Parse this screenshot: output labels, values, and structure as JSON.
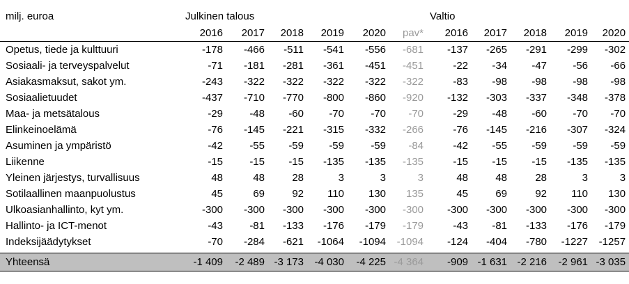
{
  "table": {
    "unit_label": "milj. euroa",
    "group_julkinen": "Julkinen talous",
    "group_valtio": "Valtio",
    "years_julkinen": [
      "2016",
      "2017",
      "2018",
      "2019",
      "2020",
      "pav*"
    ],
    "years_valtio": [
      "2016",
      "2017",
      "2018",
      "2019",
      "2020"
    ],
    "rows": [
      {
        "label": "Opetus, tiede ja kulttuuri",
        "julkinen": [
          "-178",
          "-466",
          "-511",
          "-541",
          "-556",
          "-681"
        ],
        "valtio": [
          "-137",
          "-265",
          "-291",
          "-299",
          "-302"
        ]
      },
      {
        "label": "Sosiaali- ja terveyspalvelut",
        "julkinen": [
          "-71",
          "-181",
          "-281",
          "-361",
          "-451",
          "-451"
        ],
        "valtio": [
          "-22",
          "-34",
          "-47",
          "-56",
          "-66"
        ]
      },
      {
        "label": "Asiakasmaksut, sakot ym.",
        "julkinen": [
          "-243",
          "-322",
          "-322",
          "-322",
          "-322",
          "-322"
        ],
        "valtio": [
          "-83",
          "-98",
          "-98",
          "-98",
          "-98"
        ]
      },
      {
        "label": "Sosiaalietuudet",
        "julkinen": [
          "-437",
          "-710",
          "-770",
          "-800",
          "-860",
          "-920"
        ],
        "valtio": [
          "-132",
          "-303",
          "-337",
          "-348",
          "-378"
        ]
      },
      {
        "label": "Maa- ja metsätalous",
        "julkinen": [
          "-29",
          "-48",
          "-60",
          "-70",
          "-70",
          "-70"
        ],
        "valtio": [
          "-29",
          "-48",
          "-60",
          "-70",
          "-70"
        ]
      },
      {
        "label": "Elinkeinoelämä",
        "julkinen": [
          "-76",
          "-145",
          "-221",
          "-315",
          "-332",
          "-266"
        ],
        "valtio": [
          "-76",
          "-145",
          "-216",
          "-307",
          "-324"
        ]
      },
      {
        "label": "Asuminen ja ympäristö",
        "julkinen": [
          "-42",
          "-55",
          "-59",
          "-59",
          "-59",
          "-84"
        ],
        "valtio": [
          "-42",
          "-55",
          "-59",
          "-59",
          "-59"
        ]
      },
      {
        "label": "Liikenne",
        "julkinen": [
          "-15",
          "-15",
          "-15",
          "-135",
          "-135",
          "-135"
        ],
        "valtio": [
          "-15",
          "-15",
          "-15",
          "-135",
          "-135"
        ]
      },
      {
        "label": "Yleinen järjestys, turvallisuus",
        "julkinen": [
          "48",
          "48",
          "28",
          "3",
          "3",
          "3"
        ],
        "valtio": [
          "48",
          "48",
          "28",
          "3",
          "3"
        ]
      },
      {
        "label": "Sotilaallinen maanpuolustus",
        "julkinen": [
          "45",
          "69",
          "92",
          "110",
          "130",
          "135"
        ],
        "valtio": [
          "45",
          "69",
          "92",
          "110",
          "130"
        ]
      },
      {
        "label": "Ulkoasianhallinto, kyt ym.",
        "julkinen": [
          "-300",
          "-300",
          "-300",
          "-300",
          "-300",
          "-300"
        ],
        "valtio": [
          "-300",
          "-300",
          "-300",
          "-300",
          "-300"
        ]
      },
      {
        "label": "Hallinto- ja ICT-menot",
        "julkinen": [
          "-43",
          "-81",
          "-133",
          "-176",
          "-179",
          "-179"
        ],
        "valtio": [
          "-43",
          "-81",
          "-133",
          "-176",
          "-179"
        ]
      },
      {
        "label": "Indeksijäädytykset",
        "julkinen": [
          "-70",
          "-284",
          "-621",
          "-1064",
          "-1094",
          "-1094"
        ],
        "valtio": [
          "-124",
          "-404",
          "-780",
          "-1227",
          "-1257"
        ]
      }
    ],
    "total": {
      "label": "Yhteensä",
      "julkinen": [
        "-1 409",
        "-2 489",
        "-3 173",
        "-4 030",
        "-4 225",
        "-4 364"
      ],
      "valtio": [
        "-909",
        "-1 631",
        "-2 216",
        "-2 961",
        "-3 035"
      ]
    }
  }
}
